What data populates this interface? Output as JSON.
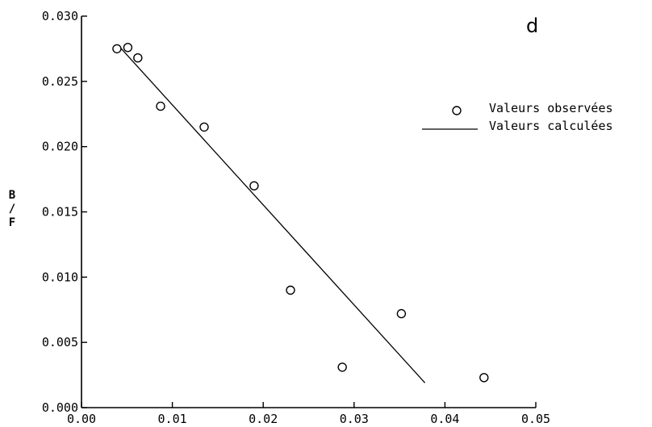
{
  "chart_data": {
    "type": "scatter",
    "panel_label": "d",
    "xlabel": "",
    "ylabel": "B/F",
    "ylabel_letters": [
      "B",
      "/",
      "F"
    ],
    "xlim": [
      0.0,
      0.05
    ],
    "ylim": [
      0.0,
      0.03
    ],
    "xticks": [
      0.0,
      0.01,
      0.02,
      0.03,
      0.04,
      0.05
    ],
    "xtick_labels": [
      "0.00",
      "0.01",
      "0.02",
      "0.03",
      "0.04",
      "0.05"
    ],
    "yticks": [
      0.0,
      0.005,
      0.01,
      0.015,
      0.02,
      0.025,
      0.03
    ],
    "ytick_labels": [
      "0.000",
      "0.005",
      "0.010",
      "0.015",
      "0.020",
      "0.025",
      "0.030"
    ],
    "grid": false,
    "legend_position": "top-right",
    "series": [
      {
        "name": "Valeurs observées",
        "kind": "scatter",
        "marker": "open-circle",
        "points": [
          {
            "x": 0.0039,
            "y": 0.0275
          },
          {
            "x": 0.0051,
            "y": 0.0276
          },
          {
            "x": 0.0062,
            "y": 0.0268
          },
          {
            "x": 0.0087,
            "y": 0.0231
          },
          {
            "x": 0.0135,
            "y": 0.0215
          },
          {
            "x": 0.019,
            "y": 0.017
          },
          {
            "x": 0.023,
            "y": 0.009
          },
          {
            "x": 0.0287,
            "y": 0.0031
          },
          {
            "x": 0.0352,
            "y": 0.0072
          },
          {
            "x": 0.0443,
            "y": 0.0023
          }
        ]
      },
      {
        "name": "Valeurs calculées",
        "kind": "line",
        "points": [
          {
            "x": 0.004,
            "y": 0.0278
          },
          {
            "x": 0.0378,
            "y": 0.0019
          }
        ]
      }
    ]
  }
}
